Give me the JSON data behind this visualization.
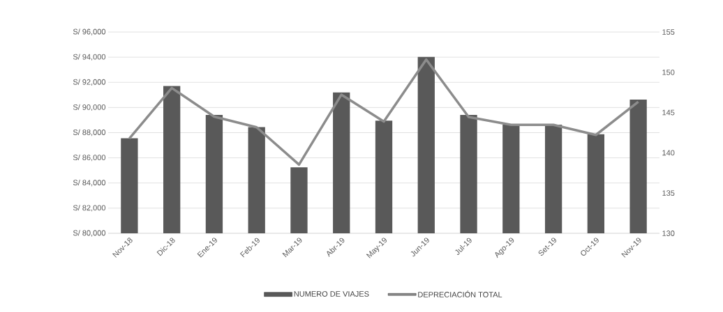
{
  "chart_data": {
    "type": "bar",
    "categories": [
      "Nov-18",
      "Dic-18",
      "Ene-19",
      "Feb-19",
      "Mar-19",
      "Abr-19",
      "May-19",
      "Jun-19",
      "Jul-19",
      "Ago-19",
      "Set-19",
      "Oct-19",
      "Nov-19"
    ],
    "series": [
      {
        "name": "NUMERO DE VIAJES",
        "axis": "y2",
        "color": "#595959",
        "values": [
          141.8,
          148.3,
          144.7,
          143.2,
          138.2,
          147.5,
          144.0,
          151.9,
          144.7,
          143.5,
          143.5,
          142.3,
          146.6
        ]
      },
      {
        "name": "DEPRECIACIÓN TOTAL",
        "type": "line",
        "color": "#8c8c8c",
        "values": [
          87530,
          91550,
          89270,
          88430,
          85460,
          91020,
          88890,
          93810,
          89250,
          88620,
          88620,
          87820,
          90450
        ]
      }
    ],
    "ylim": [
      80000,
      96000
    ],
    "yticks": [
      {
        "value": 80000,
        "label": "S/ 80,000"
      },
      {
        "value": 82000,
        "label": "S/ 82,000"
      },
      {
        "value": 84000,
        "label": "S/ 84,000"
      },
      {
        "value": 86000,
        "label": "S/ 86,000"
      },
      {
        "value": 88000,
        "label": "S/ 88,000"
      },
      {
        "value": 90000,
        "label": "S/ 90,000"
      },
      {
        "value": 92000,
        "label": "S/ 92,000"
      },
      {
        "value": 94000,
        "label": "S/ 94,000"
      },
      {
        "value": 96000,
        "label": "S/ 96,000"
      }
    ],
    "y2lim": [
      130,
      155
    ],
    "y2ticks": [
      130,
      135,
      140,
      145,
      150,
      155
    ],
    "grid": "y",
    "legend": "bottom",
    "marker": "none"
  }
}
